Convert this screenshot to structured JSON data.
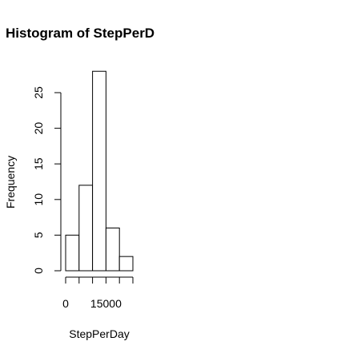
{
  "chart_data": {
    "type": "bar",
    "title": "Histogram of StepPerD",
    "xlabel": "StepPerDay",
    "ylabel": "Frequency",
    "bins": [
      {
        "start": 0,
        "end": 5000,
        "value": 5
      },
      {
        "start": 5000,
        "end": 10000,
        "value": 12
      },
      {
        "start": 10000,
        "end": 15000,
        "value": 28
      },
      {
        "start": 15000,
        "end": 20000,
        "value": 6
      },
      {
        "start": 20000,
        "end": 25000,
        "value": 2
      }
    ],
    "xlim": [
      0,
      25000
    ],
    "ylim": [
      0,
      28
    ],
    "x_ticks": [
      0,
      5000,
      10000,
      15000,
      20000,
      25000
    ],
    "x_tick_labels": [
      {
        "value": 0,
        "label": "0"
      },
      {
        "value": 15000,
        "label": "15000"
      }
    ],
    "y_ticks": [
      0,
      5,
      10,
      15,
      20,
      25
    ],
    "y_tick_labels": [
      "0",
      "5",
      "10",
      "15",
      "20",
      "25"
    ],
    "grid": false,
    "colors": {
      "bar_fill": "#ffffff",
      "bar_stroke": "#000000"
    }
  }
}
